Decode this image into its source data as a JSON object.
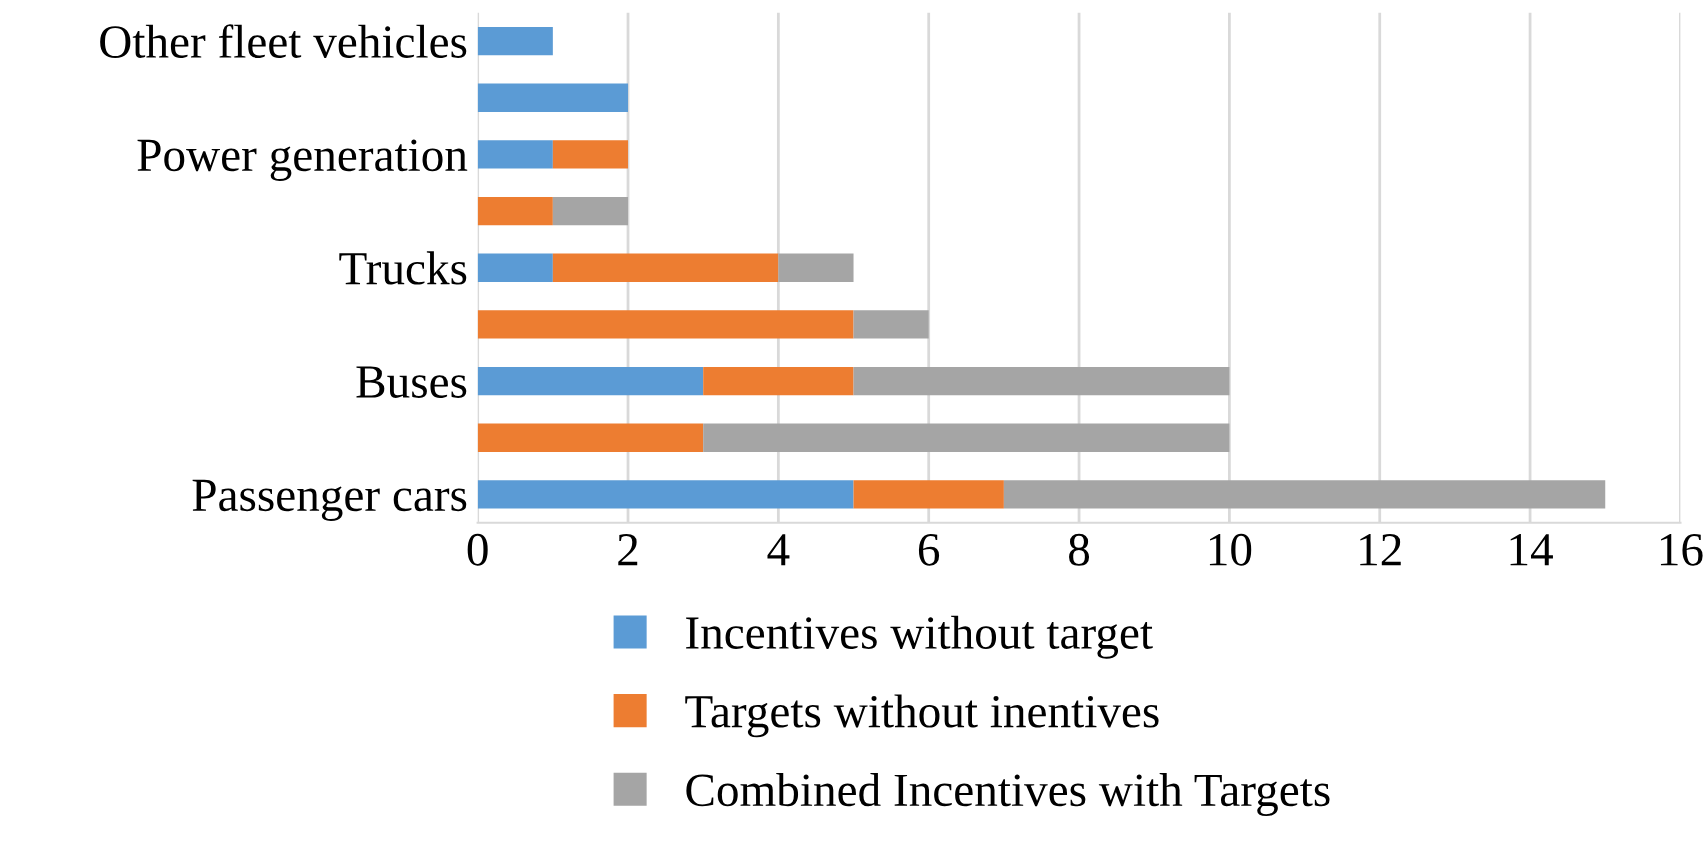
{
  "chart_data": {
    "type": "bar",
    "orientation": "horizontal",
    "stacked": true,
    "categories": [
      "Other fleet vehicles",
      null,
      "Power generation",
      null,
      "Trucks",
      null,
      "Buses",
      null,
      "Passenger cars"
    ],
    "series": [
      {
        "name": "Incentives without target",
        "color": "#5b9bd5",
        "values": [
          1,
          2,
          1,
          null,
          1,
          null,
          3,
          null,
          5
        ]
      },
      {
        "name": "Targets without inentives",
        "color": "#ed7d31",
        "values": [
          null,
          null,
          1,
          1,
          3,
          5,
          2,
          3,
          2
        ]
      },
      {
        "name": "Combined Incentives with Targets",
        "color": "#a5a5a5",
        "values": [
          null,
          null,
          null,
          1,
          1,
          1,
          5,
          7,
          8
        ]
      }
    ],
    "xlim": [
      0,
      16
    ],
    "xticks": [
      0,
      2,
      4,
      6,
      8,
      10,
      12,
      14,
      16
    ],
    "grid": "x",
    "legend": "bottom"
  }
}
